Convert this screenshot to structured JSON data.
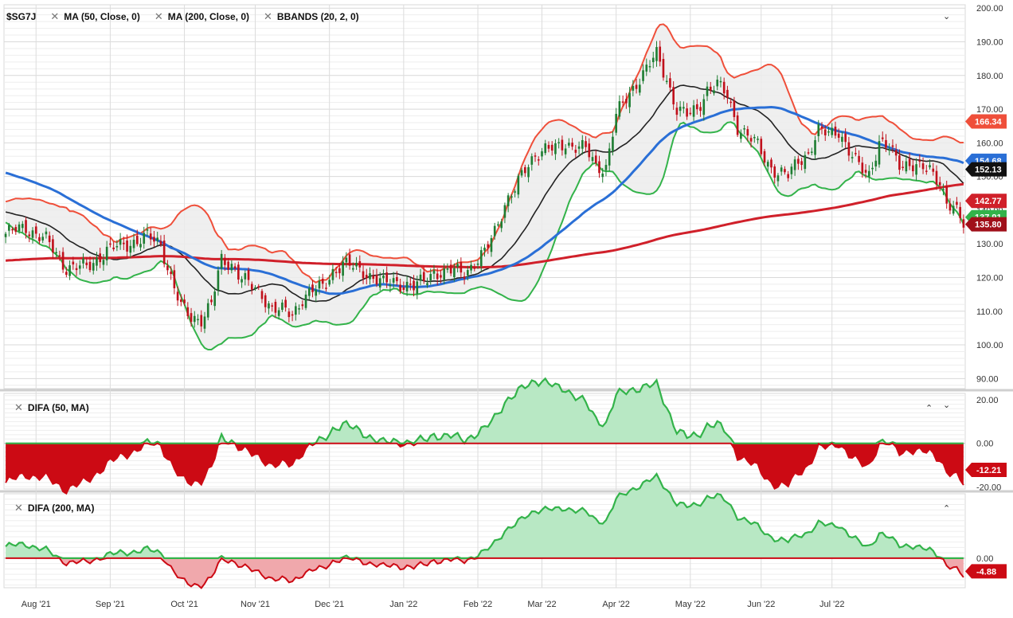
{
  "price_panel": {
    "legend": [
      {
        "label": "$SG7J",
        "closable": false
      },
      {
        "label": "MA (50, Close, 0)",
        "closable": true
      },
      {
        "label": "MA (200, Close, 0)",
        "closable": true
      },
      {
        "label": "BBANDS (20, 2, 0)",
        "closable": true
      }
    ],
    "collapse_icon": "chevron-down-icon"
  },
  "difa50_panel": {
    "label": "DIFA (50, MA)",
    "icons": [
      "chevron-up-icon",
      "chevron-down-icon"
    ]
  },
  "difa200_panel": {
    "label": "DIFA (200, MA)",
    "icons": [
      "chevron-up-icon"
    ]
  },
  "colors": {
    "up": "#1e7d32",
    "down": "#c0101b",
    "ma50": "#2a6fd6",
    "ma200": "#d0202a",
    "bb_mid": "#222222",
    "bb_upper": "#ef4f3a",
    "bb_lower": "#33b34a",
    "bb_fill": "#ececec",
    "difa_pos": "#b8e8c4",
    "difa_neg": "#cc0a14",
    "difa200_neg": "#f0a8ac"
  },
  "chart_data": [
    {
      "type": "candlestick",
      "title": "$SG7J",
      "ylim": [
        87,
        201
      ],
      "y_ticks": [
        "90.00",
        "100.00",
        "110.00",
        "120.00",
        "130.00",
        "140.00",
        "150.00",
        "160.00",
        "170.00",
        "180.00",
        "190.00",
        "200.00"
      ],
      "x_ticks": [
        "Aug '21",
        "Sep '21",
        "Oct '21",
        "Nov '21",
        "Dec '21",
        "Jan '22",
        "Feb '22",
        "Mar '22",
        "Apr '22",
        "May '22",
        "Jun '22",
        "Jul '22"
      ],
      "price_labels": [
        {
          "value": "166.34",
          "series": "BBANDS upper"
        },
        {
          "value": "154.68",
          "series": "MA (50, Close, 0)"
        },
        {
          "value": "152.13",
          "series": "BBANDS middle"
        },
        {
          "value": "142.77",
          "series": "MA (200, Close, 0)"
        },
        {
          "value": "137.91",
          "series": "BBANDS lower"
        },
        {
          "value": "135.80",
          "series": "$SG7J"
        }
      ],
      "close_path": [
        [
          0,
          133
        ],
        [
          6,
          135
        ],
        [
          12,
          131
        ],
        [
          18,
          123
        ],
        [
          24,
          123
        ],
        [
          30,
          128
        ],
        [
          36,
          130
        ],
        [
          42,
          132
        ],
        [
          46,
          130
        ],
        [
          49,
          120
        ],
        [
          52,
          111
        ],
        [
          55,
          108
        ],
        [
          58,
          108
        ],
        [
          61,
          112
        ],
        [
          64,
          125
        ],
        [
          67,
          124
        ],
        [
          70,
          120
        ],
        [
          73,
          117
        ],
        [
          76,
          115
        ],
        [
          79,
          111
        ],
        [
          82,
          110
        ],
        [
          85,
          109
        ],
        [
          88,
          114
        ],
        [
          91,
          116
        ],
        [
          94,
          117
        ],
        [
          97,
          122
        ],
        [
          100,
          124
        ],
        [
          103,
          123
        ],
        [
          106,
          122
        ],
        [
          109,
          120
        ],
        [
          112,
          118
        ],
        [
          115,
          119
        ],
        [
          118,
          118
        ],
        [
          121,
          117
        ],
        [
          124,
          119
        ],
        [
          127,
          122
        ],
        [
          130,
          121
        ],
        [
          133,
          122
        ],
        [
          136,
          122
        ],
        [
          139,
          124
        ],
        [
          142,
          127
        ],
        [
          145,
          134
        ],
        [
          148,
          142
        ],
        [
          151,
          146
        ],
        [
          154,
          152
        ],
        [
          157,
          157
        ],
        [
          160,
          158
        ],
        [
          163,
          158
        ],
        [
          166,
          160
        ],
        [
          169,
          159
        ],
        [
          172,
          158
        ],
        [
          175,
          153
        ],
        [
          178,
          153
        ],
        [
          181,
          168
        ],
        [
          184,
          173
        ],
        [
          187,
          178
        ],
        [
          190,
          182
        ],
        [
          193,
          186
        ],
        [
          196,
          179
        ],
        [
          199,
          170
        ],
        [
          202,
          168
        ],
        [
          205,
          170
        ],
        [
          208,
          176
        ],
        [
          211,
          177
        ],
        [
          214,
          174
        ],
        [
          217,
          165
        ],
        [
          220,
          162
        ],
        [
          223,
          159
        ],
        [
          226,
          154
        ],
        [
          229,
          151
        ],
        [
          232,
          150
        ],
        [
          235,
          155
        ],
        [
          238,
          157
        ],
        [
          241,
          163
        ],
        [
          244,
          163
        ],
        [
          247,
          164
        ],
        [
          250,
          157
        ],
        [
          253,
          153
        ],
        [
          256,
          151
        ],
        [
          259,
          160
        ],
        [
          262,
          158
        ],
        [
          265,
          154
        ],
        [
          268,
          154
        ],
        [
          271,
          152
        ],
        [
          274,
          152
        ],
        [
          277,
          149
        ],
        [
          279,
          142
        ],
        [
          282,
          139
        ],
        [
          284,
          136
        ]
      ],
      "bars_count": 285
    },
    {
      "type": "area",
      "title": "DIFA (50, MA)",
      "ylim": [
        -21,
        23
      ],
      "y_ticks": [
        "20.00",
        "0.00",
        "-20.00"
      ],
      "last_value": "-12.21"
    },
    {
      "type": "area",
      "title": "DIFA (200, MA)",
      "ylim": [
        -11,
        24
      ],
      "y_ticks": [
        "0.00"
      ],
      "last_value": "-4.88"
    }
  ]
}
